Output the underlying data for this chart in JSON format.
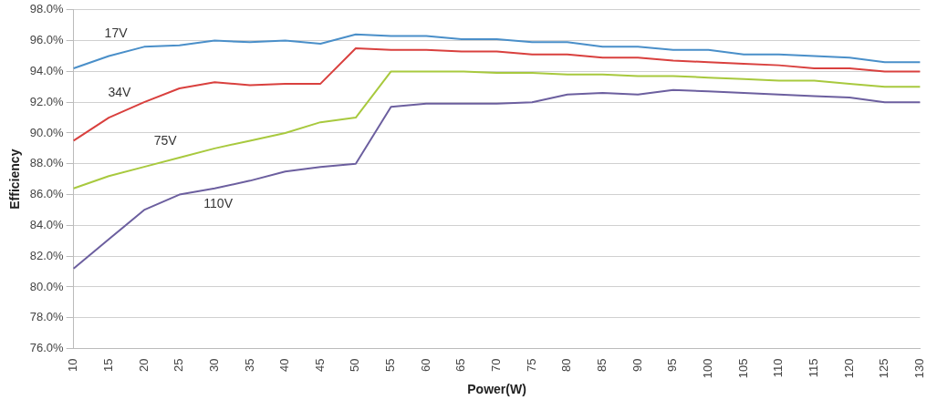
{
  "chart_data": {
    "type": "line",
    "xlabel": "Power(W)",
    "ylabel": "Efficiency",
    "categories": [
      "10",
      "15",
      "20",
      "25",
      "30",
      "35",
      "40",
      "45",
      "50",
      "55",
      "60",
      "65",
      "70",
      "75",
      "80",
      "85",
      "90",
      "95",
      "100",
      "105",
      "110",
      "115",
      "120",
      "125",
      "130"
    ],
    "series": [
      {
        "name": "17V",
        "color": "#4a8fc9",
        "values": [
          94.2,
          95.0,
          95.6,
          95.7,
          96.0,
          95.9,
          96.0,
          95.8,
          96.4,
          96.3,
          96.3,
          96.1,
          96.1,
          95.9,
          95.9,
          95.6,
          95.6,
          95.4,
          95.4,
          95.1,
          95.1,
          95.0,
          94.9,
          94.6,
          94.6
        ]
      },
      {
        "name": "34V",
        "color": "#d9403e",
        "values": [
          89.5,
          91.0,
          92.0,
          92.9,
          93.3,
          93.1,
          93.2,
          93.2,
          95.5,
          95.4,
          95.4,
          95.3,
          95.3,
          95.1,
          95.1,
          94.9,
          94.9,
          94.7,
          94.6,
          94.5,
          94.4,
          94.2,
          94.2,
          94.0,
          94.0
        ]
      },
      {
        "name": "75V",
        "color": "#a8c93e",
        "values": [
          86.4,
          87.2,
          87.8,
          88.4,
          89.0,
          89.5,
          90.0,
          90.7,
          91.0,
          94.0,
          94.0,
          94.0,
          93.9,
          93.9,
          93.8,
          93.8,
          93.7,
          93.7,
          93.6,
          93.5,
          93.4,
          93.4,
          93.2,
          93.0,
          93.0
        ]
      },
      {
        "name": "110V",
        "color": "#6c5f9f",
        "values": [
          81.2,
          83.1,
          85.0,
          86.0,
          86.4,
          86.9,
          87.5,
          87.8,
          88.0,
          91.7,
          91.9,
          91.9,
          91.9,
          92.0,
          92.5,
          92.6,
          92.5,
          92.8,
          92.7,
          92.6,
          92.5,
          92.4,
          92.3,
          92.0,
          92.0
        ]
      }
    ],
    "ylim": [
      76,
      98
    ],
    "yticks": [
      {
        "value": 76,
        "label": "76.0%"
      },
      {
        "value": 78,
        "label": "78.0%"
      },
      {
        "value": 80,
        "label": "80.0%"
      },
      {
        "value": 82,
        "label": "82.0%"
      },
      {
        "value": 84,
        "label": "84.0%"
      },
      {
        "value": 86,
        "label": "86.0%"
      },
      {
        "value": 88,
        "label": "88.0%"
      },
      {
        "value": 90,
        "label": "90.0%"
      },
      {
        "value": 92,
        "label": "92.0%"
      },
      {
        "value": 94,
        "label": "94.0%"
      },
      {
        "value": 96,
        "label": "96.0%"
      },
      {
        "value": 98,
        "label": "98.0%"
      }
    ],
    "grid": "y",
    "legend": false,
    "marker": "none",
    "line_style": "solid"
  }
}
